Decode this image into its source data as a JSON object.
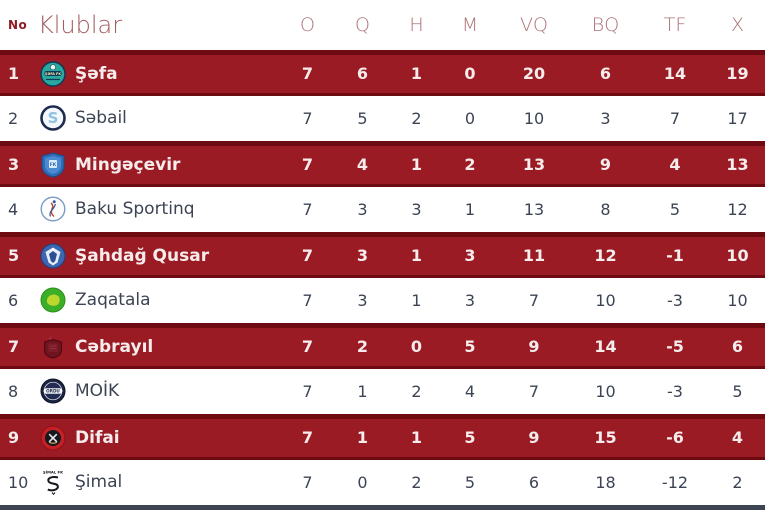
{
  "header": {
    "no_label": "No",
    "club_label": "Klublar",
    "stat_labels": [
      "O",
      "Q",
      "H",
      "M",
      "VQ",
      "BQ",
      "TF",
      "X"
    ]
  },
  "standings": [
    {
      "rank": "1",
      "club": "Şəfa",
      "logo": "sefa-crest",
      "highlighted": true,
      "stats": [
        "7",
        "6",
        "1",
        "0",
        "20",
        "6",
        "14",
        "19"
      ]
    },
    {
      "rank": "2",
      "club": "Səbail",
      "logo": "sebail-crest",
      "highlighted": false,
      "stats": [
        "7",
        "5",
        "2",
        "0",
        "10",
        "3",
        "7",
        "17"
      ]
    },
    {
      "rank": "3",
      "club": "Mingəçevir",
      "logo": "mingecevir-crest",
      "highlighted": true,
      "stats": [
        "7",
        "4",
        "1",
        "2",
        "13",
        "9",
        "4",
        "13"
      ]
    },
    {
      "rank": "4",
      "club": "Baku Sportinq",
      "logo": "baku-sportinq-crest",
      "highlighted": false,
      "stats": [
        "7",
        "3",
        "3",
        "1",
        "13",
        "8",
        "5",
        "12"
      ]
    },
    {
      "rank": "5",
      "club": "Şahdağ Qusar",
      "logo": "sahdag-qusar-crest",
      "highlighted": true,
      "stats": [
        "7",
        "3",
        "1",
        "3",
        "11",
        "12",
        "-1",
        "10"
      ]
    },
    {
      "rank": "6",
      "club": "Zaqatala",
      "logo": "zaqatala-crest",
      "highlighted": false,
      "stats": [
        "7",
        "3",
        "1",
        "3",
        "7",
        "10",
        "-3",
        "10"
      ]
    },
    {
      "rank": "7",
      "club": "Cəbrayıl",
      "logo": "cebrayil-crest",
      "highlighted": true,
      "stats": [
        "7",
        "2",
        "0",
        "5",
        "9",
        "14",
        "-5",
        "6"
      ]
    },
    {
      "rank": "8",
      "club": "MOİK",
      "logo": "moik-crest",
      "highlighted": false,
      "stats": [
        "7",
        "1",
        "2",
        "4",
        "7",
        "10",
        "-3",
        "5"
      ]
    },
    {
      "rank": "9",
      "club": "Difai",
      "logo": "difai-crest",
      "highlighted": true,
      "stats": [
        "7",
        "1",
        "1",
        "5",
        "9",
        "15",
        "-6",
        "4"
      ]
    },
    {
      "rank": "10",
      "club": "Şimal",
      "logo": "simal-crest",
      "highlighted": false,
      "stats": [
        "7",
        "0",
        "2",
        "5",
        "6",
        "18",
        "-12",
        "2"
      ]
    }
  ],
  "colors": {
    "highlight_row_bg": "#9a1b24",
    "highlight_row_border": "#6e0a12",
    "highlight_text": "#f6ecec",
    "normal_text": "#3c4454",
    "header_accent": "#a25b5e",
    "stat_header_text": "#ab7275",
    "no_label_color": "#8e1c26",
    "bottom_bar": "#3d4452"
  }
}
